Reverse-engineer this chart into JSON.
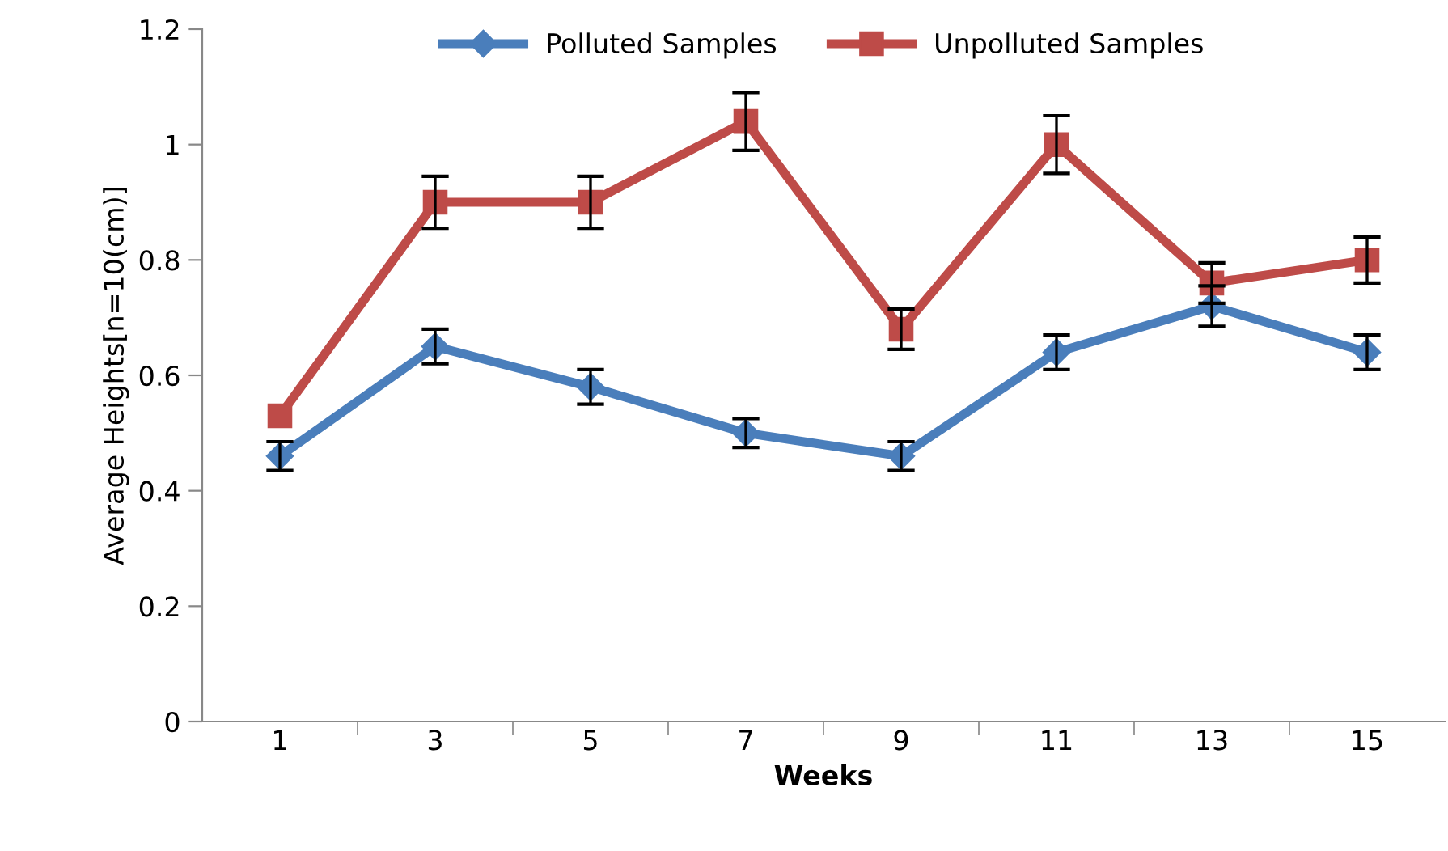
{
  "chart_data": {
    "type": "line",
    "xlabel": "Weeks",
    "ylabel": "Average Heights[n=10(cm)]",
    "categories": [
      "1",
      "3",
      "5",
      "7",
      "9",
      "11",
      "13",
      "15"
    ],
    "series": [
      {
        "name": "Polluted Samples",
        "color": "#4a7ebb",
        "marker": "diamond",
        "values": [
          0.46,
          0.65,
          0.58,
          0.5,
          0.46,
          0.64,
          0.72,
          0.64
        ],
        "errors": [
          0.025,
          0.03,
          0.03,
          0.025,
          0.025,
          0.03,
          0.035,
          0.03
        ]
      },
      {
        "name": "Unpolluted Samples",
        "color": "#be4b48",
        "marker": "square",
        "values": [
          0.53,
          0.9,
          0.9,
          1.04,
          0.68,
          1.0,
          0.76,
          0.8
        ],
        "errors": [
          null,
          0.045,
          0.045,
          0.05,
          0.035,
          0.05,
          0.035,
          0.04
        ]
      }
    ],
    "ylim": [
      0,
      1.2
    ],
    "yticks": [
      0,
      0.2,
      0.4,
      0.6,
      0.8,
      1,
      1.2
    ],
    "grid": false,
    "legend": "top",
    "line_style": "solid"
  }
}
